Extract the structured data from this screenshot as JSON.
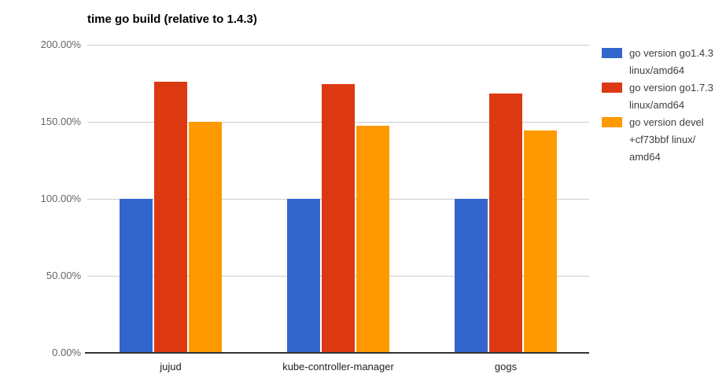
{
  "chart_data": {
    "type": "bar",
    "title": "time go build (relative to 1.4.3)",
    "xlabel": "",
    "ylabel": "",
    "categories": [
      "jujud",
      "kube-controller-manager",
      "gogs"
    ],
    "series": [
      {
        "name": "go version go1.4.3 linux/amd64",
        "legend_lines": [
          "go version go1.4.3",
          "linux/amd64"
        ],
        "color": "#3366cc",
        "values": [
          100,
          100,
          100
        ]
      },
      {
        "name": "go version go1.7.3 linux/amd64",
        "legend_lines": [
          "go version go1.7.3",
          "linux/amd64"
        ],
        "color": "#dc3912",
        "values": [
          176,
          174.5,
          168.5
        ]
      },
      {
        "name": "go version devel +cf73bbf linux/amd64",
        "legend_lines": [
          "go version devel",
          "+cf73bbf linux/",
          "amd64"
        ],
        "color": "#ff9900",
        "values": [
          150,
          147.5,
          144.5
        ]
      }
    ],
    "ylim": [
      0,
      200
    ],
    "yticks": [
      {
        "value": 0,
        "label": "0.00%"
      },
      {
        "value": 50,
        "label": "50.00%"
      },
      {
        "value": 100,
        "label": "100.00%"
      },
      {
        "value": 150,
        "label": "150.00%"
      },
      {
        "value": 200,
        "label": "200.00%"
      }
    ],
    "grid": true,
    "legend_position": "right",
    "colors": {
      "grid_line": "#cccccc",
      "axis_line": "#333333",
      "y_tick_text": "#666666",
      "x_tick_text": "#222222",
      "legend_text": "#3c4043",
      "title_text": "#000000",
      "background": "#ffffff"
    }
  }
}
